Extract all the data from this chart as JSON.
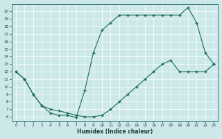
{
  "xlabel": "Humidex (Indice chaleur)",
  "bg_color": "#cce8e8",
  "line_color": "#1a6b5a",
  "upper_curve_x": [
    0,
    1,
    2,
    3,
    4,
    5,
    6,
    7,
    8,
    9,
    10,
    11,
    12,
    13,
    14,
    15,
    16,
    17,
    18,
    19,
    20,
    21,
    22,
    23
  ],
  "upper_curve_y": [
    12,
    11,
    9,
    7.5,
    6.5,
    6.2,
    6.2,
    5.9,
    9.5,
    14.5,
    17.5,
    18.5,
    19.5,
    19.5,
    19.5,
    19.5,
    19.5,
    19.5,
    19.5,
    19.5,
    20.5,
    18.5,
    14.5,
    13
  ],
  "lower_curve_x": [
    0,
    1,
    2,
    3,
    4,
    5,
    6,
    7,
    8,
    9,
    10,
    11,
    12,
    13,
    14,
    15,
    16,
    17,
    18,
    19,
    20,
    21,
    22,
    23
  ],
  "lower_curve_y": [
    12,
    11,
    9,
    7.5,
    7,
    6.8,
    6.5,
    6.2,
    6,
    6,
    6.2,
    7,
    8,
    9,
    10,
    11,
    12,
    13,
    13.5,
    12,
    12,
    12,
    12,
    13
  ],
  "xlim": [
    -0.5,
    23.5
  ],
  "ylim": [
    5.5,
    21
  ],
  "yticks": [
    6,
    7,
    8,
    9,
    10,
    11,
    12,
    13,
    14,
    15,
    16,
    17,
    18,
    19,
    20
  ],
  "xticks": [
    0,
    1,
    2,
    3,
    4,
    5,
    6,
    7,
    8,
    9,
    10,
    11,
    12,
    13,
    14,
    15,
    16,
    17,
    18,
    19,
    20,
    21,
    22,
    23
  ],
  "xtick_labels": [
    "0",
    "1",
    "2",
    "3",
    "4",
    "5",
    "6",
    "7",
    "8",
    "9",
    "10",
    "11",
    "12",
    "13",
    "14",
    "15",
    "16",
    "17",
    "18",
    "19",
    "20",
    "21",
    "22",
    "23"
  ]
}
